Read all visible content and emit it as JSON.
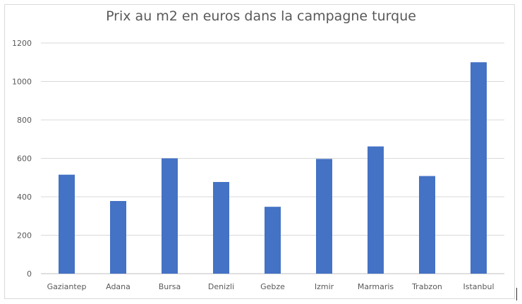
{
  "chart_data": {
    "type": "bar",
    "title": "Prix au m2 en euros dans la campagne turque",
    "xlabel": "",
    "ylabel": "",
    "categories": [
      "Gaziantep",
      "Adana",
      "Bursa",
      "Denizli",
      "Gebze",
      "Izmir",
      "Marmaris",
      "Trabzon",
      "Istanbul"
    ],
    "values": [
      515,
      378,
      600,
      477,
      348,
      597,
      662,
      508,
      1100
    ],
    "ylim": [
      0,
      1200
    ],
    "yticks": [
      "0",
      "200",
      "400",
      "600",
      "800",
      "1000",
      "1200"
    ],
    "grid": true,
    "legend": "none",
    "bar_color": "#4472c4"
  }
}
